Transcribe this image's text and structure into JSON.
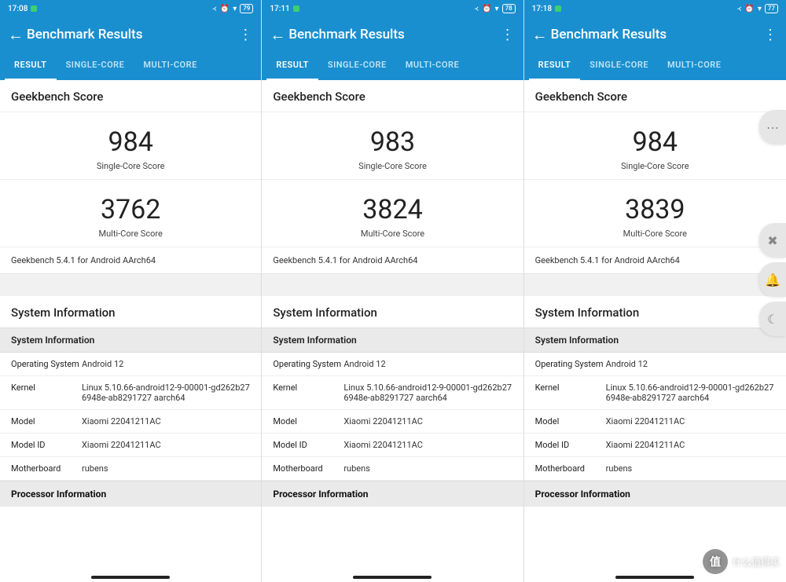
{
  "colors": {
    "brand": "#1a8fcf",
    "text": "#222222",
    "muted": "#888888",
    "divider": "#eeeeee",
    "section_bg": "#eaeaea"
  },
  "app": {
    "title": "Benchmark Results",
    "tabs": [
      "RESULT",
      "SINGLE-CORE",
      "MULTI-CORE"
    ],
    "active_tab": 0,
    "section_score_title": "Geekbench Score",
    "single_label": "Single-Core Score",
    "multi_label": "Multi-Core Score",
    "version_line": "Geekbench 5.4.1 for Android AArch64",
    "sysinfo_title": "System Information",
    "sysinfo_header": "System Information",
    "procinfo_header": "Processor Information",
    "sysinfo_keys": {
      "os": "Operating System",
      "kernel": "Kernel",
      "model": "Model",
      "model_id": "Model ID",
      "motherboard": "Motherboard"
    }
  },
  "common_sysinfo": {
    "os": "Android 12",
    "kernel": "Linux 5.10.66-android12-9-00001-gd262b276948e-ab8291727 aarch64",
    "model": "Xiaomi 22041211AC",
    "model_id": "Xiaomi 22041211AC",
    "motherboard": "rubens"
  },
  "panels": [
    {
      "status": {
        "time": "17:08",
        "battery": "79"
      },
      "scores": {
        "single": "984",
        "multi": "3762"
      }
    },
    {
      "status": {
        "time": "17:11",
        "battery": "78"
      },
      "scores": {
        "single": "983",
        "multi": "3824"
      }
    },
    {
      "status": {
        "time": "17:18",
        "battery": "77"
      },
      "scores": {
        "single": "984",
        "multi": "3839"
      }
    }
  ],
  "float_icons": {
    "dots": "⋯",
    "mute": "✖",
    "bell": "🔔",
    "moon": "☾"
  },
  "watermark": {
    "badge": "值",
    "text": "什么值得买"
  }
}
